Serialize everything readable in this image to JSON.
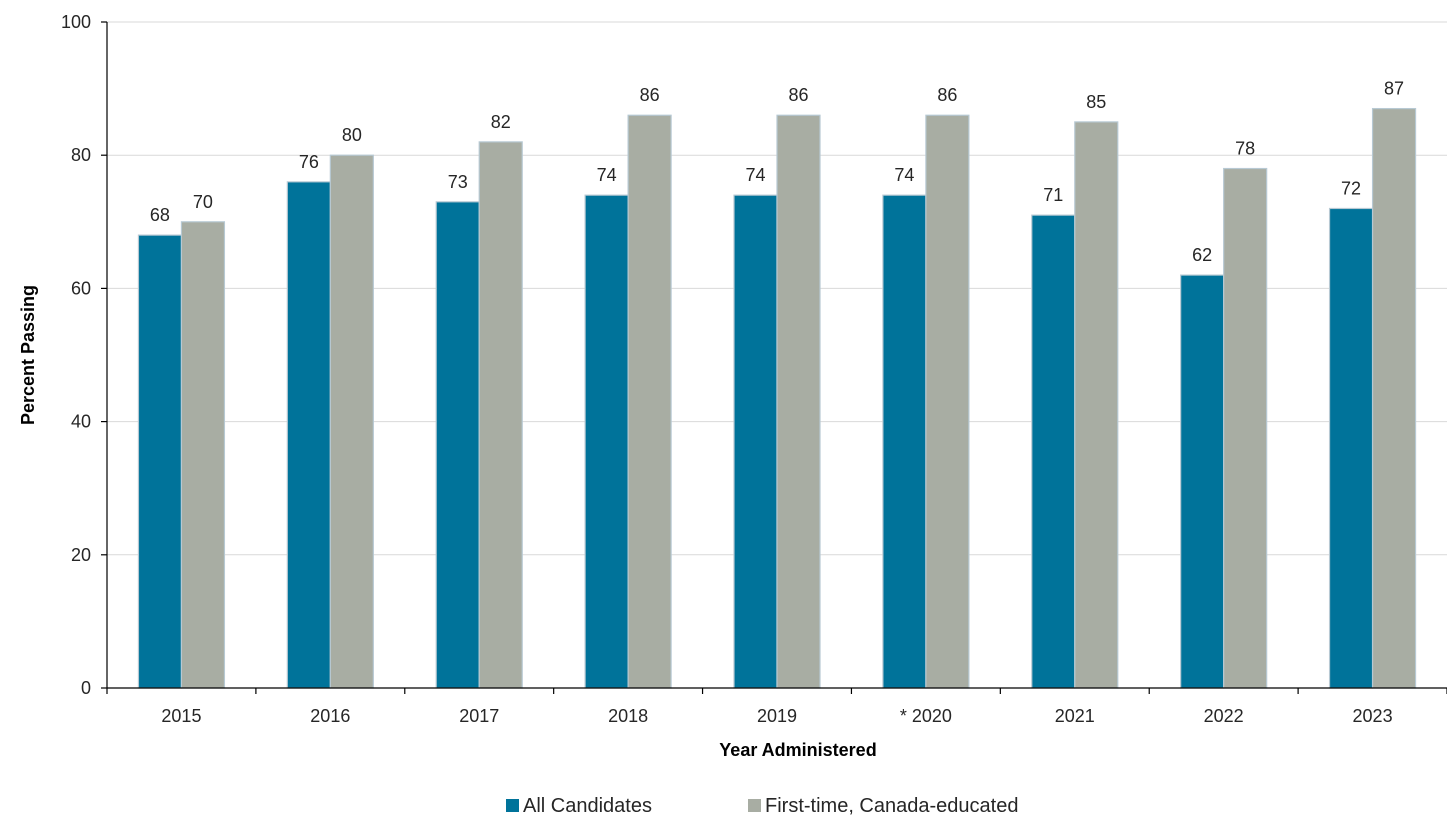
{
  "chart_data": {
    "type": "bar",
    "title": "",
    "xlabel": "Year Administered",
    "ylabel": "Percent Passing",
    "categories": [
      "2015",
      "2016",
      "2017",
      "2018",
      "2019",
      "* 2020",
      "2021",
      "2022",
      "2023"
    ],
    "series": [
      {
        "name": "All Candidates",
        "color": "#00739a",
        "values": [
          68,
          76,
          73,
          74,
          74,
          74,
          71,
          62,
          72
        ]
      },
      {
        "name": "First-time, Canada-educated",
        "color": "#a8ada3",
        "values": [
          70,
          80,
          82,
          86,
          86,
          86,
          85,
          78,
          87
        ]
      }
    ],
    "ylim": [
      0,
      100
    ],
    "yticks": [
      "0",
      "20",
      "40",
      "60",
      "80",
      "100"
    ],
    "grid": true,
    "legend": "bottom-center"
  }
}
